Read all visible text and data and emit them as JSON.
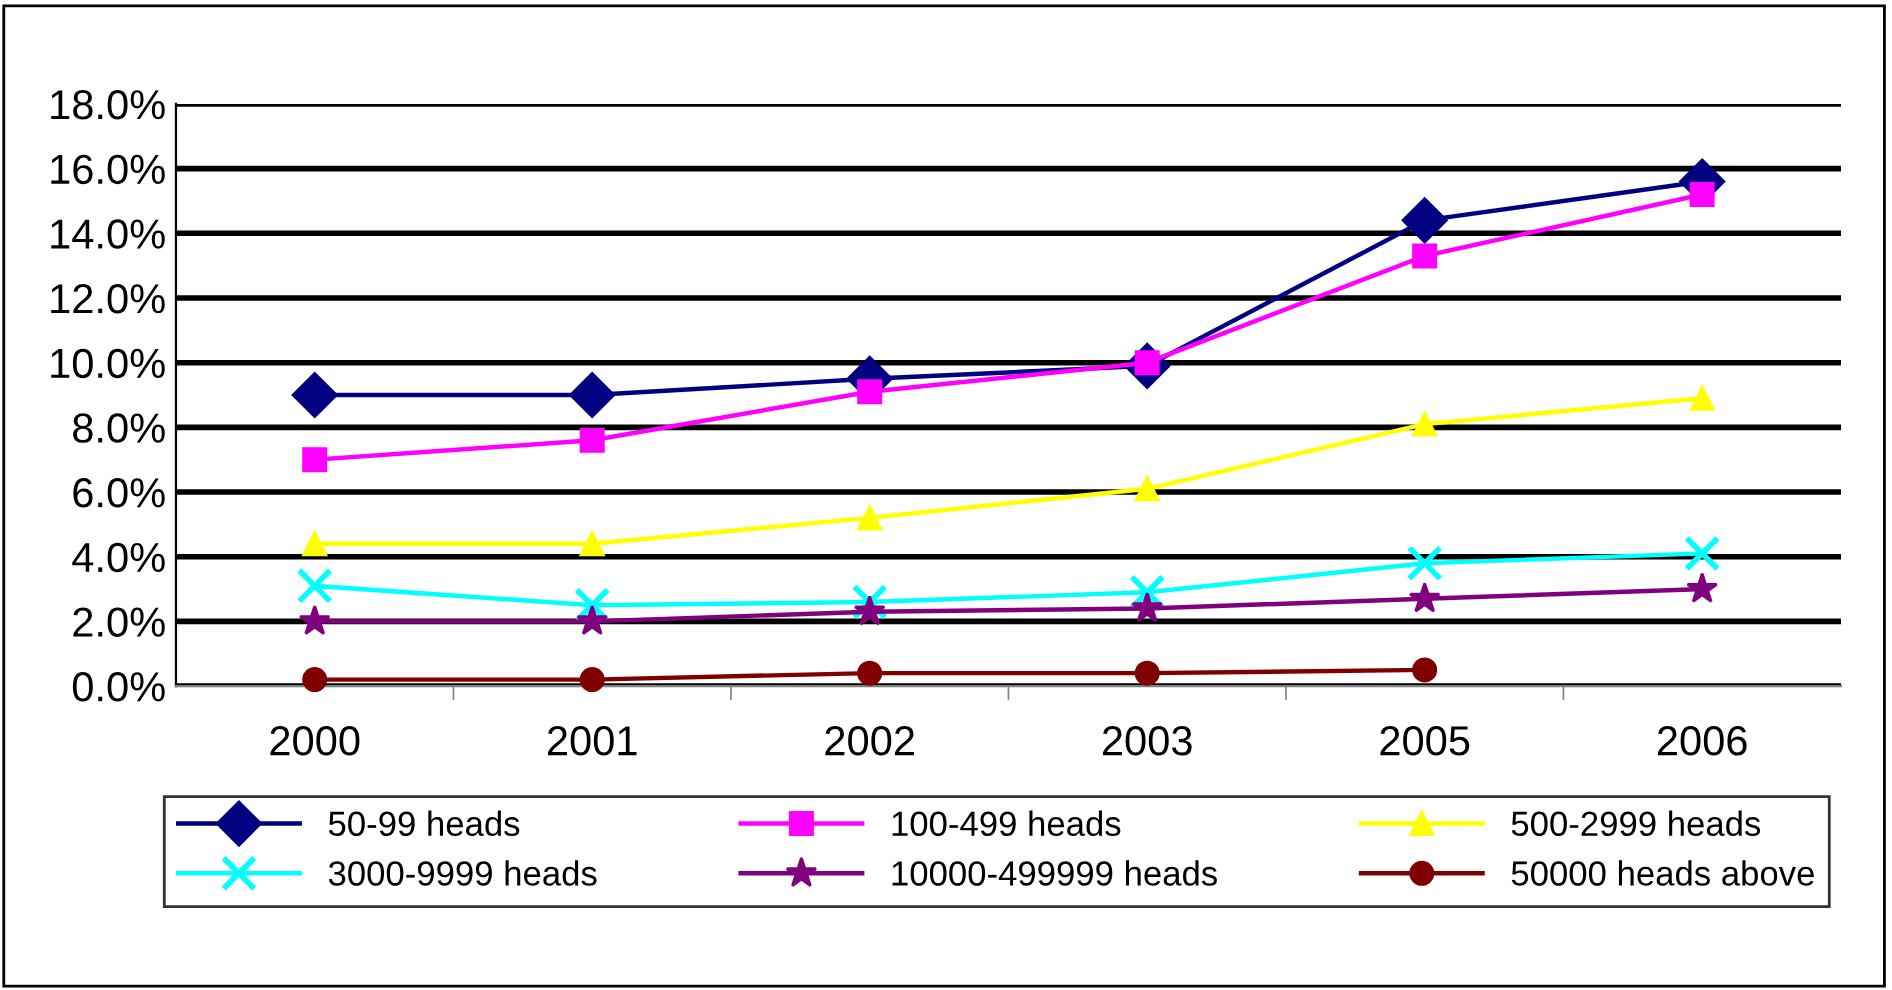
{
  "chart_data": {
    "type": "line",
    "categories": [
      "2000",
      "2001",
      "2002",
      "2003",
      "2005",
      "2006"
    ],
    "series": [
      {
        "name": "50-99 heads",
        "color": "#000080",
        "marker": "diamond",
        "values": [
          9.0,
          9.0,
          9.5,
          9.9,
          14.4,
          15.6
        ]
      },
      {
        "name": "100-499 heads",
        "color": "#ff00ff",
        "marker": "square",
        "values": [
          7.0,
          7.6,
          9.1,
          10.0,
          13.3,
          15.2
        ]
      },
      {
        "name": "500-2999 heads",
        "color": "#ffff00",
        "marker": "triangle",
        "values": [
          4.4,
          4.4,
          5.2,
          6.1,
          8.1,
          8.9
        ]
      },
      {
        "name": "3000-9999 heads",
        "color": "#00ffff",
        "marker": "cross",
        "values": [
          3.1,
          2.5,
          2.6,
          2.9,
          3.8,
          4.1
        ]
      },
      {
        "name": "10000-499999 heads",
        "color": "#800080",
        "marker": "star",
        "values": [
          2.0,
          2.0,
          2.3,
          2.4,
          2.7,
          3.0
        ]
      },
      {
        "name": "50000 heads above",
        "color": "#800000",
        "marker": "circle",
        "values": [
          0.2,
          0.2,
          0.4,
          0.4,
          0.5,
          null
        ]
      }
    ],
    "ylim": [
      0,
      18
    ],
    "yticks": [
      {
        "value": 0,
        "label": "0.0%"
      },
      {
        "value": 2,
        "label": "2.0%"
      },
      {
        "value": 4,
        "label": "4.0%"
      },
      {
        "value": 6,
        "label": "6.0%"
      },
      {
        "value": 8,
        "label": "8.0%"
      },
      {
        "value": 10,
        "label": "10.0%"
      },
      {
        "value": 12,
        "label": "12.0%"
      },
      {
        "value": 14,
        "label": "14.0%"
      },
      {
        "value": 16,
        "label": "16.0%"
      },
      {
        "value": 18,
        "label": "18.0%"
      }
    ],
    "grid": "y",
    "legend": "bottom",
    "line_style": "solid"
  }
}
